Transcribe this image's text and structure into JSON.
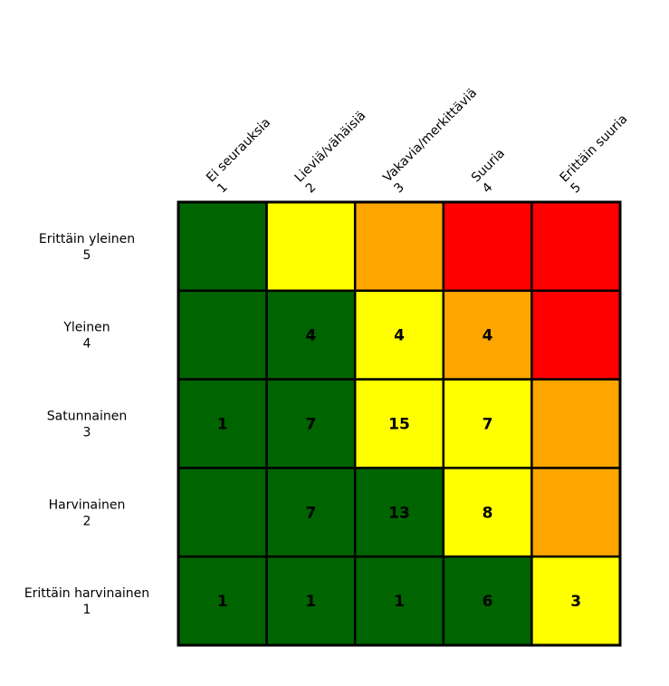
{
  "chart_data": {
    "type": "heatmap",
    "title": "",
    "xlabel": "",
    "ylabel": "",
    "grid": false,
    "legend": "none",
    "x_categories": [
      [
        "Ei seurauksia",
        "1"
      ],
      [
        "Lieviä/vähäisiä",
        "2"
      ],
      [
        "Vakavia/merkittäviä",
        "3"
      ],
      [
        "Suuria",
        "4"
      ],
      [
        "Erittäin suuria",
        "5"
      ]
    ],
    "y_categories": [
      [
        "Erittäin yleinen",
        "5"
      ],
      [
        "Yleinen",
        "4"
      ],
      [
        "Satunnainen",
        "3"
      ],
      [
        "Harvinainen",
        "2"
      ],
      [
        "Erittäin harvinainen",
        "1"
      ]
    ],
    "cell_colors": [
      [
        "green",
        "yellow",
        "orange",
        "red",
        "red"
      ],
      [
        "green",
        "green",
        "yellow",
        "orange",
        "red"
      ],
      [
        "green",
        "green",
        "yellow",
        "yellow",
        "orange"
      ],
      [
        "green",
        "green",
        "green",
        "yellow",
        "orange"
      ],
      [
        "green",
        "green",
        "green",
        "green",
        "yellow"
      ]
    ],
    "values": [
      [
        null,
        null,
        null,
        null,
        null
      ],
      [
        null,
        4,
        4,
        4,
        null
      ],
      [
        1,
        7,
        15,
        7,
        null
      ],
      [
        null,
        7,
        13,
        8,
        null
      ],
      [
        1,
        1,
        1,
        6,
        3
      ]
    ],
    "palette": {
      "green": "#006400",
      "yellow": "#ffff00",
      "orange": "#ffa500",
      "red": "#ff0000",
      "border": "#000000"
    }
  }
}
